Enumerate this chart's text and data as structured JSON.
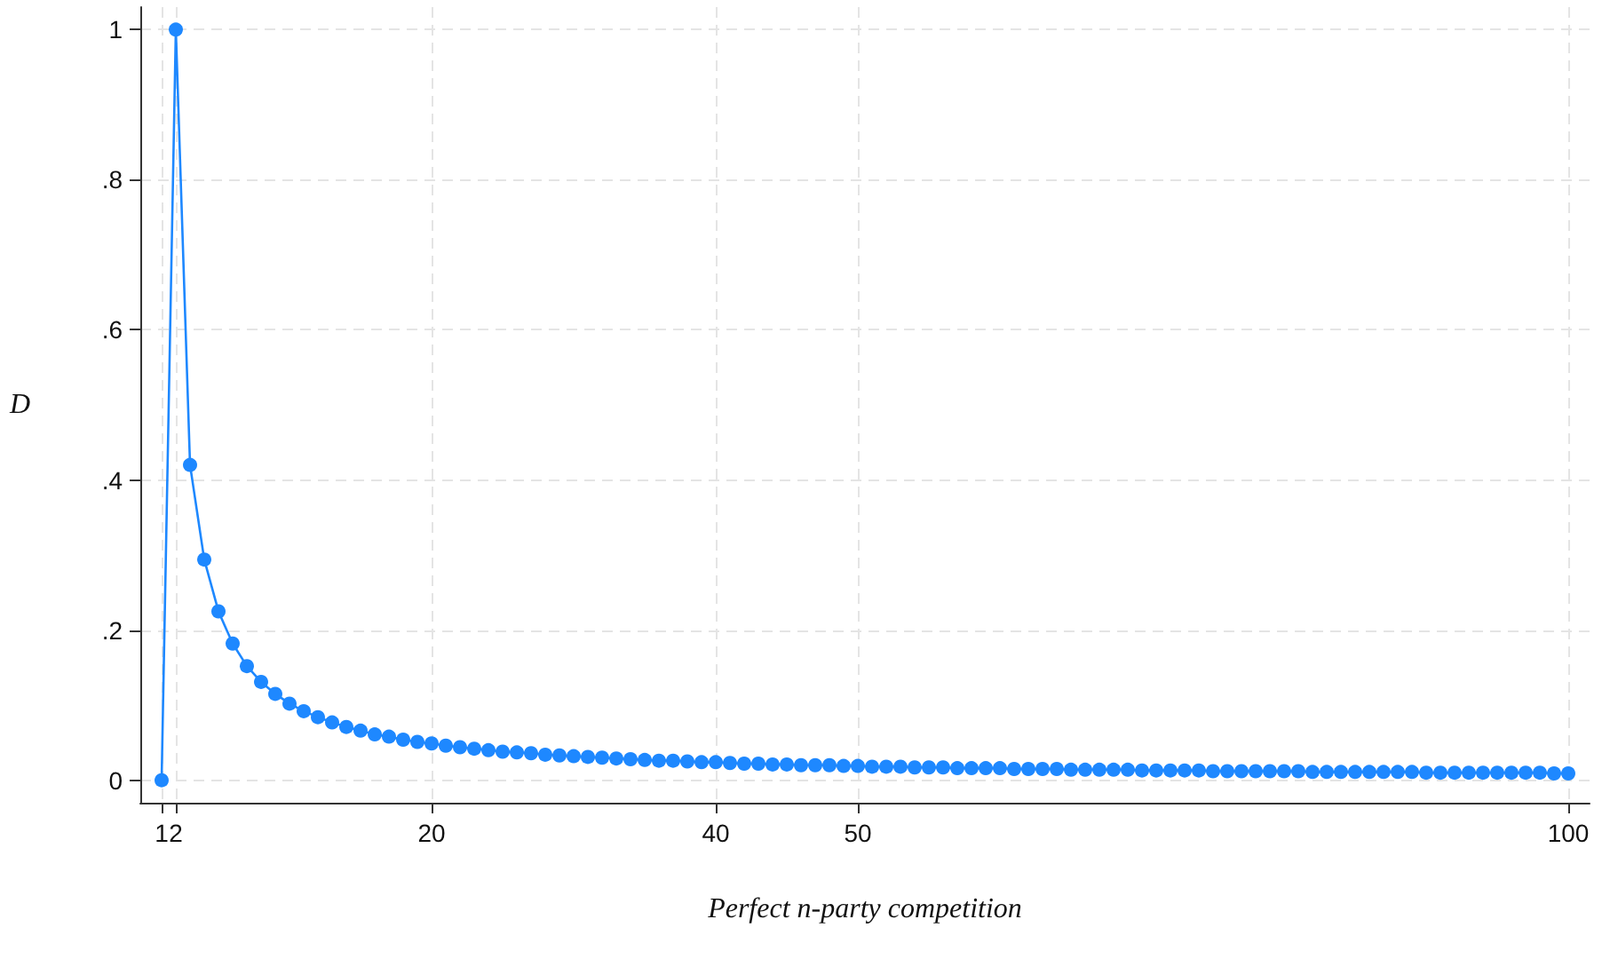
{
  "chart_data": {
    "type": "line",
    "xlabel": "Perfect n-party competition",
    "ylabel": "D",
    "x": [
      1,
      2,
      3,
      4,
      5,
      6,
      7,
      8,
      9,
      10,
      11,
      12,
      13,
      14,
      15,
      16,
      17,
      18,
      19,
      20,
      21,
      22,
      23,
      24,
      25,
      26,
      27,
      28,
      29,
      30,
      31,
      32,
      33,
      34,
      35,
      36,
      37,
      38,
      39,
      40,
      41,
      42,
      43,
      44,
      45,
      46,
      47,
      48,
      49,
      50,
      51,
      52,
      53,
      54,
      55,
      56,
      57,
      58,
      59,
      60,
      61,
      62,
      63,
      64,
      65,
      66,
      67,
      68,
      69,
      70,
      71,
      72,
      73,
      74,
      75,
      76,
      77,
      78,
      79,
      80,
      81,
      82,
      83,
      84,
      85,
      86,
      87,
      88,
      89,
      90,
      91,
      92,
      93,
      94,
      95,
      96,
      97,
      98,
      99,
      100
    ],
    "series": [
      {
        "color": "#1e88ff",
        "values": [
          0,
          1,
          0.42,
          0.294,
          0.225,
          0.182,
          0.152,
          0.131,
          0.115,
          0.102,
          0.092,
          0.084,
          0.077,
          0.071,
          0.066,
          0.061,
          0.058,
          0.054,
          0.051,
          0.049,
          0.046,
          0.044,
          0.042,
          0.04,
          0.038,
          0.037,
          0.036,
          0.034,
          0.033,
          0.032,
          0.031,
          0.03,
          0.029,
          0.028,
          0.027,
          0.026,
          0.026,
          0.025,
          0.024,
          0.024,
          0.023,
          0.022,
          0.022,
          0.021,
          0.021,
          0.02,
          0.02,
          0.02,
          0.019,
          0.019,
          0.018,
          0.018,
          0.018,
          0.017,
          0.017,
          0.017,
          0.016,
          0.016,
          0.016,
          0.016,
          0.015,
          0.015,
          0.015,
          0.015,
          0.014,
          0.014,
          0.014,
          0.014,
          0.014,
          0.013,
          0.013,
          0.013,
          0.013,
          0.013,
          0.012,
          0.012,
          0.012,
          0.012,
          0.012,
          0.012,
          0.012,
          0.011,
          0.011,
          0.011,
          0.011,
          0.011,
          0.011,
          0.011,
          0.011,
          0.01,
          0.01,
          0.01,
          0.01,
          0.01,
          0.01,
          0.01,
          0.01,
          0.01,
          0.009,
          0.009
        ]
      }
    ],
    "xlim": [
      -0.5,
      101.5
    ],
    "xticks": [
      1,
      2,
      20,
      40,
      50,
      100
    ],
    "ylim": [
      -0.03,
      1.03
    ],
    "yticks": [
      0,
      {
        "value": 0.2,
        "label": ".2"
      },
      {
        "value": 0.4,
        "label": ".4"
      },
      {
        "value": 0.6,
        "label": ".6"
      },
      {
        "value": 0.8,
        "label": ".8"
      },
      1
    ],
    "grid": true,
    "marker": "circle",
    "line_style": "solid"
  }
}
